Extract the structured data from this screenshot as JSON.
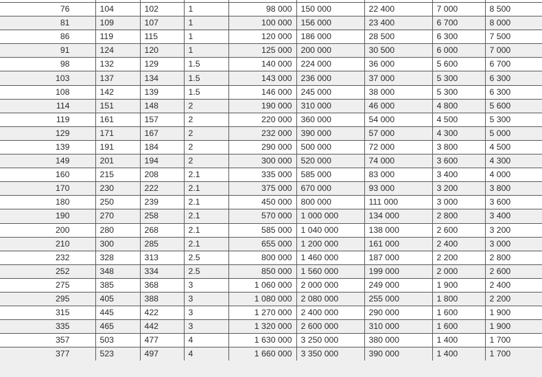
{
  "table": {
    "rows": [
      [
        "76",
        "104",
        "102",
        "1",
        "98 000",
        "150 000",
        "22 400",
        "7 000",
        "8 500"
      ],
      [
        "81",
        "109",
        "107",
        "1",
        "100 000",
        "156 000",
        "23 400",
        "6 700",
        "8 000"
      ],
      [
        "86",
        "119",
        "115",
        "1",
        "120 000",
        "186 000",
        "28 500",
        "6 300",
        "7 500"
      ],
      [
        "91",
        "124",
        "120",
        "1",
        "125 000",
        "200 000",
        "30 500",
        "6 000",
        "7 000"
      ],
      [
        "98",
        "132",
        "129",
        "1.5",
        "140 000",
        "224 000",
        "36 000",
        "5 600",
        "6 700"
      ],
      [
        "103",
        "137",
        "134",
        "1.5",
        "143 000",
        "236 000",
        "37 000",
        "5 300",
        "6 300"
      ],
      [
        "108",
        "142",
        "139",
        "1.5",
        "146 000",
        "245 000",
        "38 000",
        "5 300",
        "6 300"
      ],
      [
        "114",
        "151",
        "148",
        "2",
        "190 000",
        "310 000",
        "46 000",
        "4 800",
        "5 600"
      ],
      [
        "119",
        "161",
        "157",
        "2",
        "220 000",
        "360 000",
        "54 000",
        "4 500",
        "5 300"
      ],
      [
        "129",
        "171",
        "167",
        "2",
        "232 000",
        "390 000",
        "57 000",
        "4 300",
        "5 000"
      ],
      [
        "139",
        "191",
        "184",
        "2",
        "290 000",
        "500 000",
        "72 000",
        "3 800",
        "4 500"
      ],
      [
        "149",
        "201",
        "194",
        "2",
        "300 000",
        "520 000",
        "74 000",
        "3 600",
        "4 300"
      ],
      [
        "160",
        "215",
        "208",
        "2.1",
        "335 000",
        "585 000",
        "83 000",
        "3 400",
        "4 000"
      ],
      [
        "170",
        "230",
        "222",
        "2.1",
        "375 000",
        "670 000",
        "93 000",
        "3 200",
        "3 800"
      ],
      [
        "180",
        "250",
        "239",
        "2.1",
        "450 000",
        "800 000",
        "111 000",
        "3 000",
        "3 600"
      ],
      [
        "190",
        "270",
        "258",
        "2.1",
        "570 000",
        "1 000 000",
        "134 000",
        "2 800",
        "3 400"
      ],
      [
        "200",
        "280",
        "268",
        "2.1",
        "585 000",
        "1 040 000",
        "138 000",
        "2 600",
        "3 200"
      ],
      [
        "210",
        "300",
        "285",
        "2.1",
        "655 000",
        "1 200 000",
        "161 000",
        "2 400",
        "3 000"
      ],
      [
        "232",
        "328",
        "313",
        "2.5",
        "800 000",
        "1 460 000",
        "187 000",
        "2 200",
        "2 800"
      ],
      [
        "252",
        "348",
        "334",
        "2.5",
        "850 000",
        "1 560 000",
        "199 000",
        "2 000",
        "2 600"
      ],
      [
        "275",
        "385",
        "368",
        "3",
        "1 060 000",
        "2 000 000",
        "249 000",
        "1 900",
        "2 400"
      ],
      [
        "295",
        "405",
        "388",
        "3",
        "1 080 000",
        "2 080 000",
        "255 000",
        "1 800",
        "2 200"
      ],
      [
        "315",
        "445",
        "422",
        "3",
        "1 270 000",
        "2 400 000",
        "290 000",
        "1 600",
        "1 900"
      ],
      [
        "335",
        "465",
        "442",
        "3",
        "1 320 000",
        "2 600 000",
        "310 000",
        "1 600",
        "1 900"
      ],
      [
        "357",
        "503",
        "477",
        "4",
        "1 630 000",
        "3 250 000",
        "380 000",
        "1 400",
        "1 700"
      ],
      [
        "377",
        "523",
        "497",
        "4",
        "1 660 000",
        "3 350 000",
        "390 000",
        "1 400",
        "1 700"
      ]
    ]
  }
}
